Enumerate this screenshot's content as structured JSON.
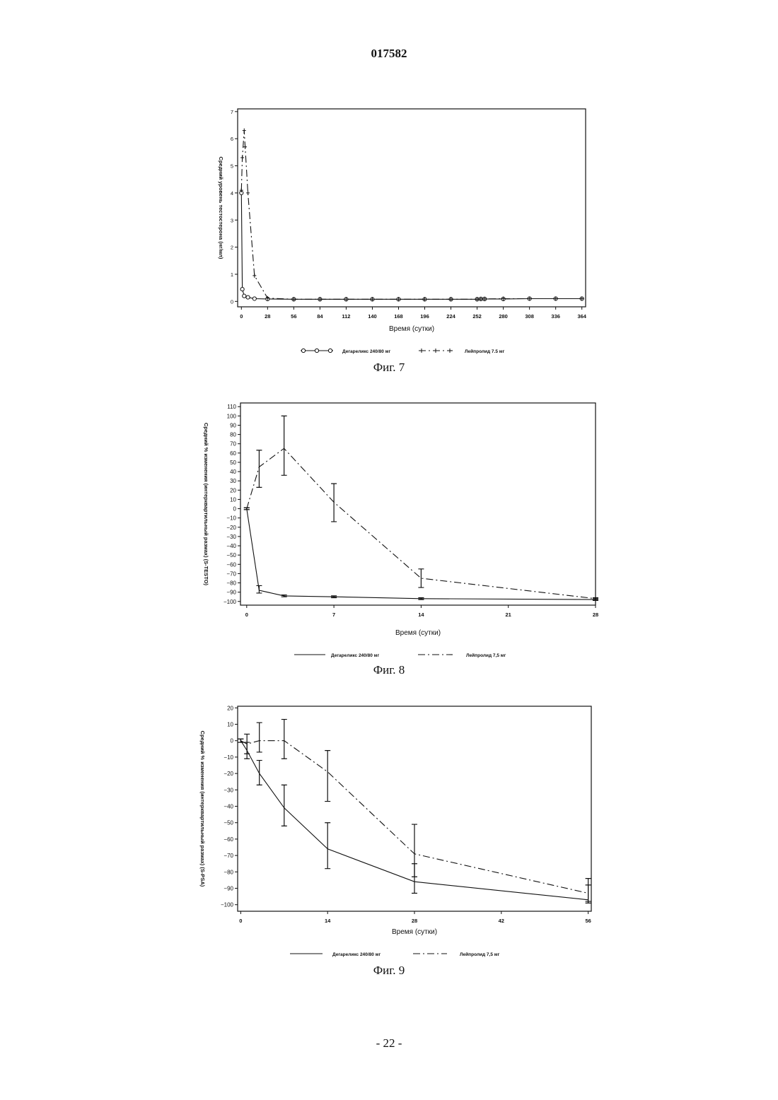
{
  "page": {
    "doc_number": "017582",
    "page_number": "- 22 -"
  },
  "figures": [
    {
      "caption": "Фиг. 7",
      "chart_data": {
        "type": "line",
        "ylabel": "Средний уровень тестостерона (нг/мл)",
        "xlabel": "Время (сутки)",
        "xlim": [
          -4,
          368
        ],
        "ylim": [
          -0.2,
          7.1
        ],
        "xticks": [
          0,
          28,
          56,
          84,
          112,
          140,
          168,
          196,
          224,
          252,
          280,
          308,
          336,
          364
        ],
        "yticks": [
          0,
          1,
          2,
          3,
          4,
          5,
          6,
          7
        ],
        "legend_position": "bottom",
        "series": [
          {
            "name": "Дегареликс 240/80 мг",
            "style": "solid-circle",
            "x": [
              0,
              1,
              3,
              7,
              14,
              28,
              56,
              84,
              112,
              140,
              168,
              196,
              224,
              252,
              256,
              260,
              280,
              308,
              336,
              364
            ],
            "y": [
              4.0,
              0.45,
              0.2,
              0.15,
              0.1,
              0.09,
              0.08,
              0.08,
              0.08,
              0.08,
              0.08,
              0.08,
              0.08,
              0.08,
              0.09,
              0.09,
              0.09,
              0.1,
              0.1,
              0.1
            ]
          },
          {
            "name": "Лейпролид 7.5 мг",
            "style": "dashdot-cross",
            "x": [
              0,
              1,
              3,
              4,
              7,
              14,
              28,
              56,
              84,
              112,
              140,
              168,
              196,
              224,
              252,
              256,
              260,
              280,
              308,
              336,
              364
            ],
            "y": [
              4.1,
              5.3,
              6.3,
              5.7,
              4.0,
              0.95,
              0.12,
              0.08,
              0.08,
              0.08,
              0.08,
              0.08,
              0.08,
              0.08,
              0.08,
              0.09,
              0.09,
              0.1,
              0.1,
              0.1,
              0.1
            ]
          }
        ]
      }
    },
    {
      "caption": "Фиг. 8",
      "chart_data": {
        "type": "line",
        "ylabel": "Средний % изменения (интерквартильный размах) (S-TESTO)",
        "xlabel": "Время (сутки)",
        "xlim": [
          -0.5,
          28
        ],
        "ylim": [
          -104,
          114
        ],
        "xticks": [
          0,
          7,
          14,
          21,
          28
        ],
        "yticks": [
          110,
          100,
          90,
          80,
          70,
          60,
          50,
          40,
          30,
          20,
          10,
          0,
          -10,
          -20,
          -30,
          -40,
          -50,
          -60,
          -70,
          -80,
          -90,
          -100
        ],
        "legend_position": "bottom",
        "series": [
          {
            "name": "Дегареликс 240/80 мг",
            "style": "solid",
            "x": [
              0,
              1,
              3,
              7,
              14,
              28
            ],
            "y": [
              0,
              -88,
              -94,
              -95,
              -97,
              -98
            ],
            "err_low": [
              -1,
              -91,
              -95,
              -96,
              -98,
              -99
            ],
            "err_high": [
              1,
              -83,
              -93,
              -94,
              -96,
              -97
            ]
          },
          {
            "name": "Лейпролид 7,5 мг",
            "style": "dashdot",
            "x": [
              0,
              1,
              3,
              7,
              14,
              28
            ],
            "y": [
              0,
              45,
              65,
              7,
              -75,
              -97
            ],
            "err_low": [
              -1,
              23,
              36,
              -14,
              -85,
              -98
            ],
            "err_high": [
              1,
              63,
              100,
              27,
              -65,
              -96
            ]
          }
        ]
      }
    },
    {
      "caption": "Фиг. 9",
      "chart_data": {
        "type": "line",
        "ylabel": "Средний % изменения (интерквартильный размах) (S-PSA)",
        "xlabel": "Время (сутки)",
        "xlim": [
          -0.5,
          56.5
        ],
        "ylim": [
          -104,
          21
        ],
        "xticks": [
          0,
          14,
          28,
          42,
          56
        ],
        "yticks": [
          20,
          10,
          0,
          -10,
          -20,
          -30,
          -40,
          -50,
          -60,
          -70,
          -80,
          -90,
          -100
        ],
        "legend_position": "bottom",
        "series": [
          {
            "name": "Дегареликс 240/80 мг",
            "style": "solid",
            "x": [
              0,
              1,
              3,
              7,
              14,
              28,
              56
            ],
            "y": [
              0,
              -6,
              -20,
              -41,
              -66,
              -86,
              -97
            ],
            "err_low": [
              -1,
              -11,
              -27,
              -52,
              -78,
              -93,
              -99
            ],
            "err_high": [
              1,
              -1,
              -12,
              -27,
              -50,
              -75,
              -88
            ]
          },
          {
            "name": "Лейпролид 7,5 мг",
            "style": "dashdot",
            "x": [
              0,
              1,
              3,
              7,
              14,
              28,
              56
            ],
            "y": [
              0,
              -2,
              0,
              0,
              -19,
              -69,
              -93
            ],
            "err_low": [
              -1,
              -8,
              -7,
              -11,
              -37,
              -83,
              -98
            ],
            "err_high": [
              1,
              4,
              11,
              13,
              -6,
              -51,
              -84
            ]
          }
        ]
      }
    }
  ]
}
